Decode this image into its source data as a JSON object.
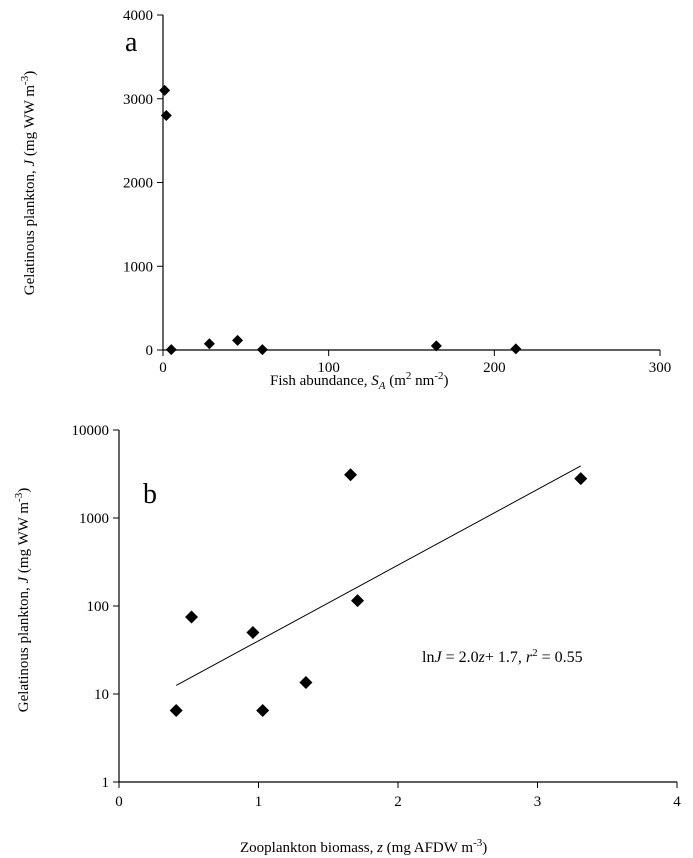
{
  "chart_data": [
    {
      "type": "scatter",
      "panel_label": "a",
      "xlabel": "Fish abundance, S_A (m² nm⁻²)",
      "ylabel": "Gelatinous plankton, J (mg WW m⁻³)",
      "xlim": [
        0,
        300
      ],
      "ylim": [
        0,
        4000
      ],
      "xticks": [
        0,
        100,
        200,
        300
      ],
      "yticks": [
        0,
        1000,
        2000,
        3000,
        4000
      ],
      "xticklabels": [
        "0",
        "100",
        "200",
        "300"
      ],
      "yticklabels": [
        "0",
        "1000",
        "2000",
        "3000",
        "4000"
      ],
      "grid": false,
      "points": [
        {
          "x": 1,
          "y": 3100
        },
        {
          "x": 2,
          "y": 2800
        },
        {
          "x": 5,
          "y": 5
        },
        {
          "x": 28,
          "y": 75
        },
        {
          "x": 45,
          "y": 115
        },
        {
          "x": 60,
          "y": 5
        },
        {
          "x": 165,
          "y": 50
        },
        {
          "x": 213,
          "y": 14
        }
      ]
    },
    {
      "type": "scatter",
      "panel_label": "b",
      "xlabel": "Zooplankton biomass, z (mg AFDW m⁻³)",
      "ylabel": "Gelatinous plankton, J (mg WW m⁻³)",
      "xlim": [
        0,
        4
      ],
      "ylim": [
        1,
        10000
      ],
      "yscale": "log",
      "xticks": [
        0,
        1,
        2,
        3,
        4
      ],
      "yticks": [
        1,
        10,
        100,
        1000,
        10000
      ],
      "xticklabels": [
        "0",
        "1",
        "2",
        "3",
        "4"
      ],
      "yticklabels": [
        "1",
        "10",
        "100",
        "1000",
        "10000"
      ],
      "grid": false,
      "points": [
        {
          "x": 0.41,
          "y": 6.5
        },
        {
          "x": 0.52,
          "y": 75
        },
        {
          "x": 0.96,
          "y": 50
        },
        {
          "x": 1.03,
          "y": 6.5
        },
        {
          "x": 1.34,
          "y": 13.5
        },
        {
          "x": 1.66,
          "y": 3100
        },
        {
          "x": 1.71,
          "y": 115
        },
        {
          "x": 3.31,
          "y": 2800
        }
      ],
      "fit_line": {
        "x": [
          0.41,
          3.31
        ],
        "y": [
          12.5,
          3900
        ]
      },
      "annotation": "lnJ = 2.0z+ 1.7, r² = 0.55"
    }
  ]
}
